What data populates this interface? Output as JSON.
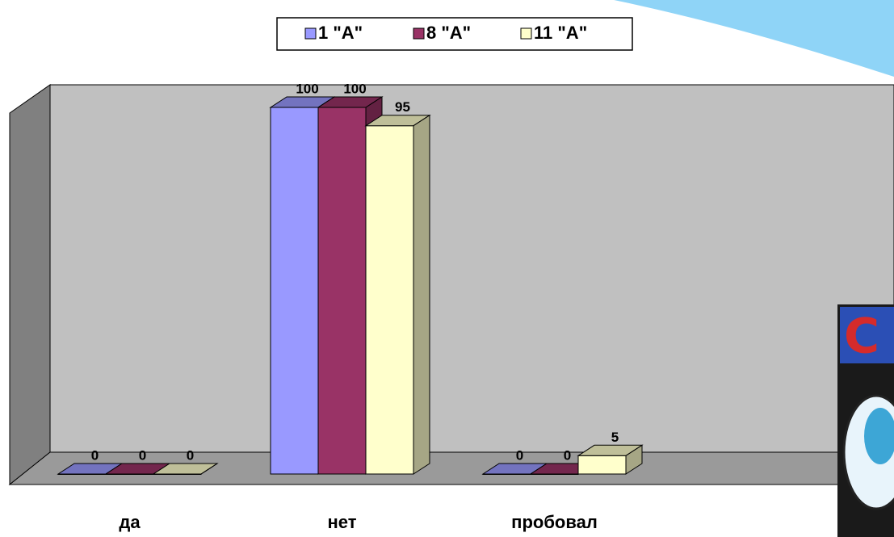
{
  "chart_data": {
    "type": "bar3d",
    "categories": [
      "да",
      "нет",
      "пробовал"
    ],
    "series": [
      {
        "name": "1 \"А\"",
        "color": "#9999ff",
        "values": [
          0,
          100,
          0
        ]
      },
      {
        "name": "8 \"А\"",
        "color": "#993366",
        "values": [
          0,
          100,
          0
        ]
      },
      {
        "name": "11 \"А\"",
        "color": "#ffffcc",
        "values": [
          0,
          95,
          5
        ]
      }
    ],
    "ylim": [
      0,
      100
    ],
    "legend": "top"
  }
}
